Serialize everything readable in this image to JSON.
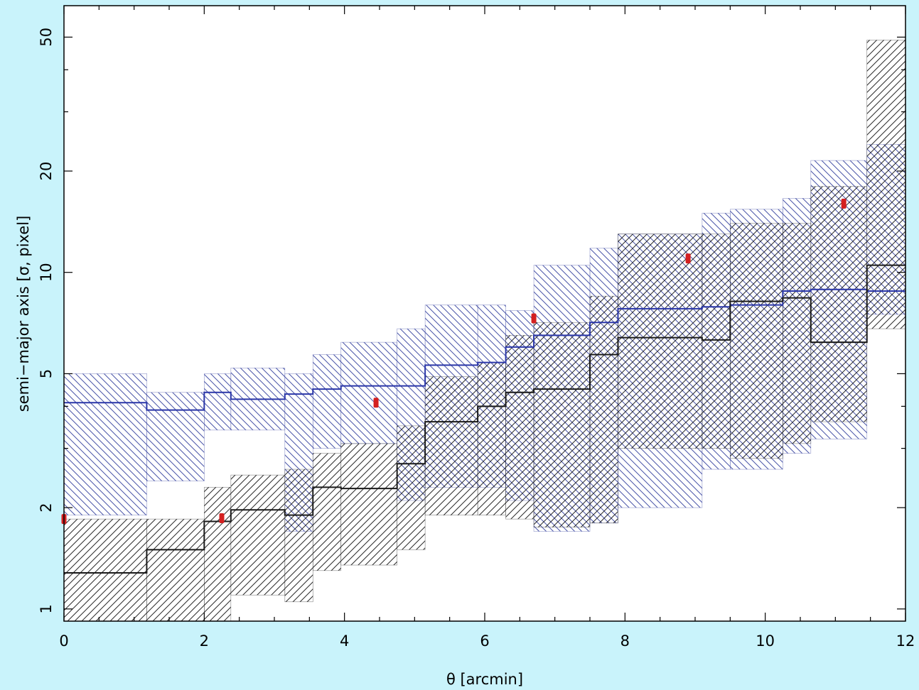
{
  "chart_data": {
    "type": "area",
    "title": "",
    "xlabel": "θ [arcmin]",
    "ylabel": "semi−major axis [σ, pixel]",
    "xlim": [
      0,
      12
    ],
    "ylim": [
      0.92,
      62
    ],
    "yscale": "log",
    "grid": false,
    "x_ticks": [
      {
        "value": 0,
        "label": "0"
      },
      {
        "value": 2,
        "label": "2"
      },
      {
        "value": 4,
        "label": "4"
      },
      {
        "value": 6,
        "label": "6"
      },
      {
        "value": 8,
        "label": "8"
      },
      {
        "value": 10,
        "label": "10"
      },
      {
        "value": 12,
        "label": "12"
      }
    ],
    "y_ticks": [
      {
        "value": 1,
        "label": "1"
      },
      {
        "value": 2,
        "label": "2"
      },
      {
        "value": 5,
        "label": "5"
      },
      {
        "value": 10,
        "label": "10"
      },
      {
        "value": 20,
        "label": "20"
      },
      {
        "value": 50,
        "label": "50"
      }
    ],
    "y_minor_ticks": [
      3,
      4,
      30,
      40
    ],
    "series": [
      {
        "style": "step-line",
        "color": "#2a36a8",
        "points": [
          [
            0,
            4.1
          ],
          [
            1.18,
            3.9
          ],
          [
            2.0,
            4.4
          ],
          [
            2.38,
            4.2
          ],
          [
            3.15,
            4.35
          ],
          [
            3.55,
            4.5
          ],
          [
            3.95,
            4.6
          ],
          [
            4.75,
            4.6
          ],
          [
            5.15,
            5.3
          ],
          [
            5.9,
            5.4
          ],
          [
            6.3,
            6.0
          ],
          [
            6.7,
            6.5
          ],
          [
            7.5,
            7.1
          ],
          [
            7.9,
            7.8
          ],
          [
            9.1,
            7.9
          ],
          [
            9.5,
            8.0
          ],
          [
            10.25,
            8.8
          ],
          [
            10.65,
            8.9
          ],
          [
            11.45,
            8.8
          ],
          [
            12.0,
            8.8
          ]
        ]
      },
      {
        "style": "step-line",
        "color": "#1a1a1a",
        "points": [
          [
            0,
            1.28
          ],
          [
            1.18,
            1.5
          ],
          [
            2.0,
            1.82
          ],
          [
            2.38,
            1.97
          ],
          [
            3.15,
            1.9
          ],
          [
            3.55,
            2.3
          ],
          [
            3.95,
            2.28
          ],
          [
            4.75,
            2.7
          ],
          [
            5.15,
            3.6
          ],
          [
            5.9,
            4.0
          ],
          [
            6.3,
            4.4
          ],
          [
            6.7,
            4.5
          ],
          [
            7.5,
            5.7
          ],
          [
            7.9,
            6.4
          ],
          [
            9.1,
            6.3
          ],
          [
            9.5,
            8.2
          ],
          [
            10.25,
            8.4
          ],
          [
            10.65,
            6.2
          ],
          [
            11.45,
            10.5
          ],
          [
            12.0,
            10.5
          ]
        ]
      },
      {
        "style": "step-band",
        "hatch": "blue-backslash",
        "color": "#3a46a0",
        "bins": [
          [
            0,
            1.18,
            1.9,
            5.0
          ],
          [
            1.18,
            2.0,
            2.4,
            4.4
          ],
          [
            2.0,
            2.38,
            3.4,
            5.0
          ],
          [
            2.38,
            3.15,
            3.4,
            5.2
          ],
          [
            3.15,
            3.55,
            1.7,
            5.0
          ],
          [
            3.55,
            3.95,
            3.0,
            5.7
          ],
          [
            3.95,
            4.75,
            3.1,
            6.2
          ],
          [
            4.75,
            5.15,
            2.1,
            6.8
          ],
          [
            5.15,
            5.9,
            2.3,
            8.0
          ],
          [
            5.9,
            6.3,
            2.3,
            8.0
          ],
          [
            6.3,
            6.7,
            2.1,
            7.7
          ],
          [
            6.7,
            7.5,
            1.7,
            10.5
          ],
          [
            7.5,
            7.9,
            1.8,
            11.8
          ],
          [
            7.9,
            9.1,
            2.0,
            13.0
          ],
          [
            9.1,
            9.5,
            2.6,
            15.0
          ],
          [
            9.5,
            10.25,
            2.6,
            15.4
          ],
          [
            10.25,
            10.65,
            2.9,
            16.6
          ],
          [
            10.65,
            11.45,
            3.2,
            21.5
          ],
          [
            11.45,
            12.0,
            7.5,
            24.0
          ]
        ]
      },
      {
        "style": "step-band",
        "hatch": "black-slash",
        "color": "#222222",
        "bins": [
          [
            0,
            1.18,
            0.92,
            1.85
          ],
          [
            1.18,
            2.0,
            0.92,
            1.85
          ],
          [
            2.0,
            2.38,
            0.92,
            2.3
          ],
          [
            2.38,
            3.15,
            1.1,
            2.5
          ],
          [
            3.15,
            3.55,
            1.05,
            2.6
          ],
          [
            3.55,
            3.95,
            1.3,
            2.9
          ],
          [
            3.95,
            4.75,
            1.35,
            3.1
          ],
          [
            4.75,
            5.15,
            1.5,
            3.5
          ],
          [
            5.15,
            5.9,
            1.9,
            4.9
          ],
          [
            5.9,
            6.3,
            1.9,
            5.4
          ],
          [
            6.3,
            6.7,
            1.85,
            6.5
          ],
          [
            6.7,
            7.5,
            1.75,
            7.1
          ],
          [
            7.5,
            7.9,
            1.8,
            8.5
          ],
          [
            7.9,
            9.1,
            3.0,
            13.0
          ],
          [
            9.1,
            9.5,
            3.0,
            13.0
          ],
          [
            9.5,
            10.25,
            2.8,
            14.0
          ],
          [
            10.25,
            10.65,
            3.1,
            14.0
          ],
          [
            10.65,
            11.45,
            3.6,
            18.0
          ],
          [
            11.45,
            12.0,
            6.8,
            49.0
          ]
        ]
      }
    ],
    "markers": {
      "color": "#d42020",
      "points": [
        [
          0,
          1.85
        ],
        [
          2.25,
          1.86
        ],
        [
          4.45,
          4.1
        ],
        [
          6.7,
          7.3
        ],
        [
          8.9,
          11.0
        ],
        [
          11.12,
          16.0
        ]
      ]
    }
  }
}
